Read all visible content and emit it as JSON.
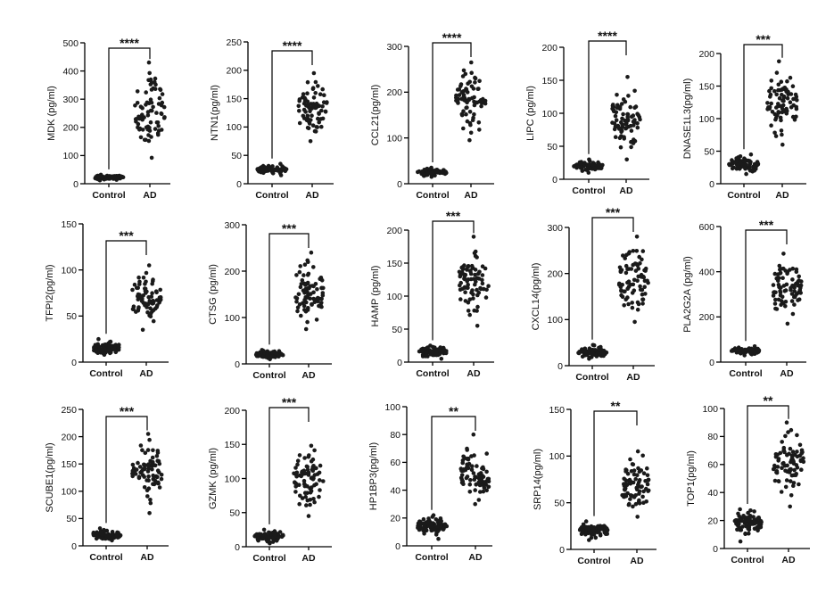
{
  "figure": {
    "point_color": "#1a1a1a",
    "axis_color": "#000000"
  },
  "chart_data": [
    {
      "type": "scatter",
      "ylabel": "MDK (pg/ml)",
      "ylim": [
        0,
        500
      ],
      "yticks": [
        0,
        100,
        200,
        300,
        400,
        500
      ],
      "grid": false,
      "categories": [
        "Control",
        "AD"
      ],
      "groups": [
        {
          "min": 12,
          "median": 22,
          "max": 32
        },
        {
          "min": 92,
          "median": 255,
          "max": 430
        }
      ],
      "significance": "****"
    },
    {
      "type": "scatter",
      "ylabel": "NTN1(pg/ml)",
      "ylim": [
        0,
        250
      ],
      "yticks": [
        0,
        50,
        100,
        150,
        200,
        250
      ],
      "grid": false,
      "categories": [
        "Control",
        "AD"
      ],
      "groups": [
        {
          "min": 15,
          "median": 25,
          "max": 35
        },
        {
          "min": 75,
          "median": 135,
          "max": 195
        }
      ],
      "significance": "****"
    },
    {
      "type": "scatter",
      "ylabel": "CCL21(pg/ml)",
      "ylim": [
        0,
        300
      ],
      "yticks": [
        0,
        100,
        200,
        300
      ],
      "grid": false,
      "categories": [
        "Control",
        "AD"
      ],
      "groups": [
        {
          "min": 15,
          "median": 25,
          "max": 35
        },
        {
          "min": 95,
          "median": 180,
          "max": 265
        }
      ],
      "significance": "****"
    },
    {
      "type": "scatter",
      "ylabel": "LIPC (pg/ml)",
      "ylim": [
        0,
        200
      ],
      "yticks": [
        0,
        50,
        100,
        150,
        200
      ],
      "grid": false,
      "categories": [
        "Control",
        "AD"
      ],
      "groups": [
        {
          "min": 10,
          "median": 20,
          "max": 30
        },
        {
          "min": 30,
          "median": 90,
          "max": 155
        }
      ],
      "significance": "****"
    },
    {
      "type": "scatter",
      "ylabel": "DNASE1L3(pg/ml)",
      "ylim": [
        0,
        200
      ],
      "yticks": [
        0,
        50,
        100,
        150,
        200
      ],
      "grid": false,
      "categories": [
        "Control",
        "AD"
      ],
      "groups": [
        {
          "min": 15,
          "median": 30,
          "max": 45
        },
        {
          "min": 60,
          "median": 125,
          "max": 188
        }
      ],
      "significance": "***"
    },
    {
      "type": "scatter",
      "ylabel": "TFPI2(pg/ml)",
      "ylim": [
        0,
        150
      ],
      "yticks": [
        0,
        50,
        100,
        150
      ],
      "grid": false,
      "categories": [
        "Control",
        "AD"
      ],
      "groups": [
        {
          "min": 8,
          "median": 15,
          "max": 25
        },
        {
          "min": 35,
          "median": 70,
          "max": 105
        }
      ],
      "significance": "***"
    },
    {
      "type": "scatter",
      "ylabel": "CTSG (pg/ml)",
      "ylim": [
        0,
        300
      ],
      "yticks": [
        0,
        100,
        200,
        300
      ],
      "grid": false,
      "categories": [
        "Control",
        "AD"
      ],
      "groups": [
        {
          "min": 10,
          "median": 20,
          "max": 30
        },
        {
          "min": 75,
          "median": 150,
          "max": 240
        }
      ],
      "significance": "***"
    },
    {
      "type": "scatter",
      "ylabel": "HAMP (pg/ml)",
      "ylim": [
        0,
        200
      ],
      "yticks": [
        0,
        50,
        100,
        150,
        200
      ],
      "grid": false,
      "categories": [
        "Control",
        "AD"
      ],
      "groups": [
        {
          "min": 5,
          "median": 15,
          "max": 25
        },
        {
          "min": 55,
          "median": 120,
          "max": 190
        }
      ],
      "significance": "***"
    },
    {
      "type": "scatter",
      "ylabel": "CXCL14(pg/ml)",
      "ylim": [
        0,
        300
      ],
      "yticks": [
        0,
        100,
        200,
        300
      ],
      "grid": false,
      "categories": [
        "Control",
        "AD"
      ],
      "groups": [
        {
          "min": 15,
          "median": 28,
          "max": 45
        },
        {
          "min": 95,
          "median": 180,
          "max": 280
        }
      ],
      "significance": "***"
    },
    {
      "type": "scatter",
      "ylabel": "PLA2G2A (pg/ml)",
      "ylim": [
        0,
        600
      ],
      "yticks": [
        0,
        200,
        400,
        600
      ],
      "grid": false,
      "categories": [
        "Control",
        "AD"
      ],
      "groups": [
        {
          "min": 30,
          "median": 50,
          "max": 70
        },
        {
          "min": 170,
          "median": 320,
          "max": 480
        }
      ],
      "significance": "***"
    },
    {
      "type": "scatter",
      "ylabel": "SCUBE1(pg/ml)",
      "ylim": [
        0,
        250
      ],
      "yticks": [
        0,
        50,
        100,
        150,
        200,
        250
      ],
      "grid": false,
      "categories": [
        "Control",
        "AD"
      ],
      "groups": [
        {
          "min": 10,
          "median": 20,
          "max": 32
        },
        {
          "min": 60,
          "median": 135,
          "max": 205
        }
      ],
      "significance": "***"
    },
    {
      "type": "scatter",
      "ylabel": "GZMK (pg/ml)",
      "ylim": [
        0,
        200
      ],
      "yticks": [
        0,
        50,
        100,
        150,
        200
      ],
      "grid": false,
      "categories": [
        "Control",
        "AD"
      ],
      "groups": [
        {
          "min": 5,
          "median": 15,
          "max": 25
        },
        {
          "min": 45,
          "median": 100,
          "max": 148
        }
      ],
      "significance": "***"
    },
    {
      "type": "scatter",
      "ylabel": "HP1BP3(pg/ml)",
      "ylim": [
        0,
        100
      ],
      "yticks": [
        0,
        20,
        40,
        60,
        80,
        100
      ],
      "grid": false,
      "categories": [
        "Control",
        "AD"
      ],
      "groups": [
        {
          "min": 5,
          "median": 14,
          "max": 22
        },
        {
          "min": 30,
          "median": 50,
          "max": 80
        }
      ],
      "significance": "**"
    },
    {
      "type": "scatter",
      "ylabel": "SRP14(pg/ml)",
      "ylim": [
        0,
        150
      ],
      "yticks": [
        0,
        50,
        100,
        150
      ],
      "grid": false,
      "categories": [
        "Control",
        "AD"
      ],
      "groups": [
        {
          "min": 10,
          "median": 20,
          "max": 30
        },
        {
          "min": 35,
          "median": 65,
          "max": 105
        }
      ],
      "significance": "**"
    },
    {
      "type": "scatter",
      "ylabel": "TOP1(pg/ml)",
      "ylim": [
        0,
        100
      ],
      "yticks": [
        0,
        20,
        40,
        60,
        80,
        100
      ],
      "grid": false,
      "categories": [
        "Control",
        "AD"
      ],
      "groups": [
        {
          "min": 5,
          "median": 18,
          "max": 28
        },
        {
          "min": 30,
          "median": 60,
          "max": 90
        }
      ],
      "significance": "**"
    }
  ]
}
